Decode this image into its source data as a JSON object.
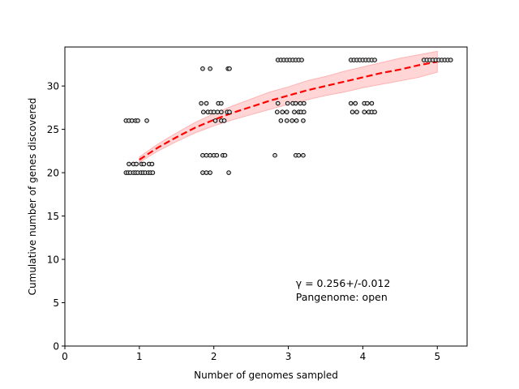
{
  "chart_data": {
    "type": "scatter",
    "xlabel": "Number of genomes sampled",
    "ylabel": "Cumulative number of genes discovered",
    "xlim": [
      0,
      5.4
    ],
    "ylim": [
      0,
      34.5
    ],
    "xticks": [
      0,
      1,
      2,
      3,
      4,
      5
    ],
    "yticks": [
      0,
      5,
      10,
      15,
      20,
      25,
      30
    ],
    "grid": false,
    "points": [
      {
        "x": 0.82,
        "y": 20
      },
      {
        "x": 0.85,
        "y": 20
      },
      {
        "x": 0.88,
        "y": 20
      },
      {
        "x": 0.92,
        "y": 20
      },
      {
        "x": 0.95,
        "y": 20
      },
      {
        "x": 0.98,
        "y": 20
      },
      {
        "x": 1.02,
        "y": 20
      },
      {
        "x": 1.05,
        "y": 20
      },
      {
        "x": 1.08,
        "y": 20
      },
      {
        "x": 1.12,
        "y": 20
      },
      {
        "x": 1.15,
        "y": 20
      },
      {
        "x": 1.18,
        "y": 20
      },
      {
        "x": 0.86,
        "y": 21
      },
      {
        "x": 0.92,
        "y": 21
      },
      {
        "x": 0.96,
        "y": 21
      },
      {
        "x": 1.03,
        "y": 21
      },
      {
        "x": 1.06,
        "y": 21
      },
      {
        "x": 1.13,
        "y": 21
      },
      {
        "x": 1.17,
        "y": 21
      },
      {
        "x": 0.82,
        "y": 26
      },
      {
        "x": 0.86,
        "y": 26
      },
      {
        "x": 0.9,
        "y": 26
      },
      {
        "x": 0.95,
        "y": 26
      },
      {
        "x": 0.98,
        "y": 26
      },
      {
        "x": 1.1,
        "y": 26
      },
      {
        "x": 1.85,
        "y": 20
      },
      {
        "x": 1.9,
        "y": 20
      },
      {
        "x": 1.95,
        "y": 20
      },
      {
        "x": 2.2,
        "y": 20
      },
      {
        "x": 1.85,
        "y": 22
      },
      {
        "x": 1.9,
        "y": 22
      },
      {
        "x": 1.95,
        "y": 22
      },
      {
        "x": 2.0,
        "y": 22
      },
      {
        "x": 2.04,
        "y": 22
      },
      {
        "x": 2.12,
        "y": 22
      },
      {
        "x": 2.15,
        "y": 22
      },
      {
        "x": 2.02,
        "y": 26
      },
      {
        "x": 2.1,
        "y": 26
      },
      {
        "x": 2.14,
        "y": 26
      },
      {
        "x": 1.86,
        "y": 27
      },
      {
        "x": 1.92,
        "y": 27
      },
      {
        "x": 1.96,
        "y": 27
      },
      {
        "x": 2.0,
        "y": 27
      },
      {
        "x": 2.05,
        "y": 27
      },
      {
        "x": 2.1,
        "y": 27
      },
      {
        "x": 2.18,
        "y": 27
      },
      {
        "x": 2.21,
        "y": 27
      },
      {
        "x": 1.83,
        "y": 28
      },
      {
        "x": 1.9,
        "y": 28
      },
      {
        "x": 2.06,
        "y": 28
      },
      {
        "x": 2.1,
        "y": 28
      },
      {
        "x": 1.85,
        "y": 32
      },
      {
        "x": 1.95,
        "y": 32
      },
      {
        "x": 2.19,
        "y": 32
      },
      {
        "x": 2.21,
        "y": 32
      },
      {
        "x": 2.82,
        "y": 22
      },
      {
        "x": 3.1,
        "y": 22
      },
      {
        "x": 3.14,
        "y": 22
      },
      {
        "x": 3.2,
        "y": 22
      },
      {
        "x": 2.9,
        "y": 26
      },
      {
        "x": 2.98,
        "y": 26
      },
      {
        "x": 3.05,
        "y": 26
      },
      {
        "x": 3.11,
        "y": 26
      },
      {
        "x": 3.2,
        "y": 26
      },
      {
        "x": 2.85,
        "y": 27
      },
      {
        "x": 2.92,
        "y": 27
      },
      {
        "x": 2.98,
        "y": 27
      },
      {
        "x": 3.08,
        "y": 27
      },
      {
        "x": 3.14,
        "y": 27
      },
      {
        "x": 3.17,
        "y": 27
      },
      {
        "x": 3.21,
        "y": 27
      },
      {
        "x": 2.86,
        "y": 28
      },
      {
        "x": 2.99,
        "y": 28
      },
      {
        "x": 3.06,
        "y": 28
      },
      {
        "x": 3.1,
        "y": 28
      },
      {
        "x": 3.16,
        "y": 28
      },
      {
        "x": 3.21,
        "y": 28
      },
      {
        "x": 2.86,
        "y": 33
      },
      {
        "x": 2.9,
        "y": 33
      },
      {
        "x": 2.94,
        "y": 33
      },
      {
        "x": 2.98,
        "y": 33
      },
      {
        "x": 3.02,
        "y": 33
      },
      {
        "x": 3.06,
        "y": 33
      },
      {
        "x": 3.1,
        "y": 33
      },
      {
        "x": 3.14,
        "y": 33
      },
      {
        "x": 3.18,
        "y": 33
      },
      {
        "x": 3.86,
        "y": 27
      },
      {
        "x": 3.92,
        "y": 27
      },
      {
        "x": 4.02,
        "y": 27
      },
      {
        "x": 4.08,
        "y": 27
      },
      {
        "x": 4.12,
        "y": 27
      },
      {
        "x": 4.16,
        "y": 27
      },
      {
        "x": 3.84,
        "y": 28
      },
      {
        "x": 3.9,
        "y": 28
      },
      {
        "x": 4.02,
        "y": 28
      },
      {
        "x": 4.06,
        "y": 28
      },
      {
        "x": 4.12,
        "y": 28
      },
      {
        "x": 3.84,
        "y": 33
      },
      {
        "x": 3.88,
        "y": 33
      },
      {
        "x": 3.92,
        "y": 33
      },
      {
        "x": 3.96,
        "y": 33
      },
      {
        "x": 4.0,
        "y": 33
      },
      {
        "x": 4.04,
        "y": 33
      },
      {
        "x": 4.08,
        "y": 33
      },
      {
        "x": 4.12,
        "y": 33
      },
      {
        "x": 4.16,
        "y": 33
      },
      {
        "x": 4.82,
        "y": 33
      },
      {
        "x": 4.86,
        "y": 33
      },
      {
        "x": 4.9,
        "y": 33
      },
      {
        "x": 4.94,
        "y": 33
      },
      {
        "x": 4.98,
        "y": 33
      },
      {
        "x": 5.02,
        "y": 33
      },
      {
        "x": 5.06,
        "y": 33
      },
      {
        "x": 5.1,
        "y": 33
      },
      {
        "x": 5.14,
        "y": 33
      },
      {
        "x": 5.18,
        "y": 33
      }
    ],
    "fit": {
      "x": [
        1.0,
        1.25,
        1.5,
        1.75,
        2.0,
        2.25,
        2.5,
        2.75,
        3.0,
        3.25,
        3.5,
        3.75,
        4.0,
        4.25,
        4.5,
        4.75,
        5.0
      ],
      "y": [
        21.5,
        22.9,
        24.1,
        25.2,
        26.1,
        26.9,
        27.6,
        28.3,
        28.9,
        29.5,
        30.0,
        30.5,
        31.0,
        31.5,
        31.9,
        32.4,
        32.8
      ],
      "lower": [
        21.2,
        22.5,
        23.6,
        24.6,
        25.4,
        26.1,
        26.7,
        27.3,
        27.9,
        28.4,
        28.9,
        29.3,
        29.8,
        30.2,
        30.6,
        31.0,
        31.6
      ],
      "upper": [
        21.8,
        23.3,
        24.6,
        25.8,
        26.8,
        27.7,
        28.5,
        29.3,
        29.9,
        30.6,
        31.1,
        31.7,
        32.2,
        32.7,
        33.2,
        33.6,
        34.0
      ],
      "color": "#ff0000",
      "band_color": "#ffb3b3"
    },
    "annotation": {
      "x": 3.1,
      "y": 7.2,
      "line1": "γ = 0.256+/-0.012",
      "line2": "Pangenome: open"
    }
  }
}
